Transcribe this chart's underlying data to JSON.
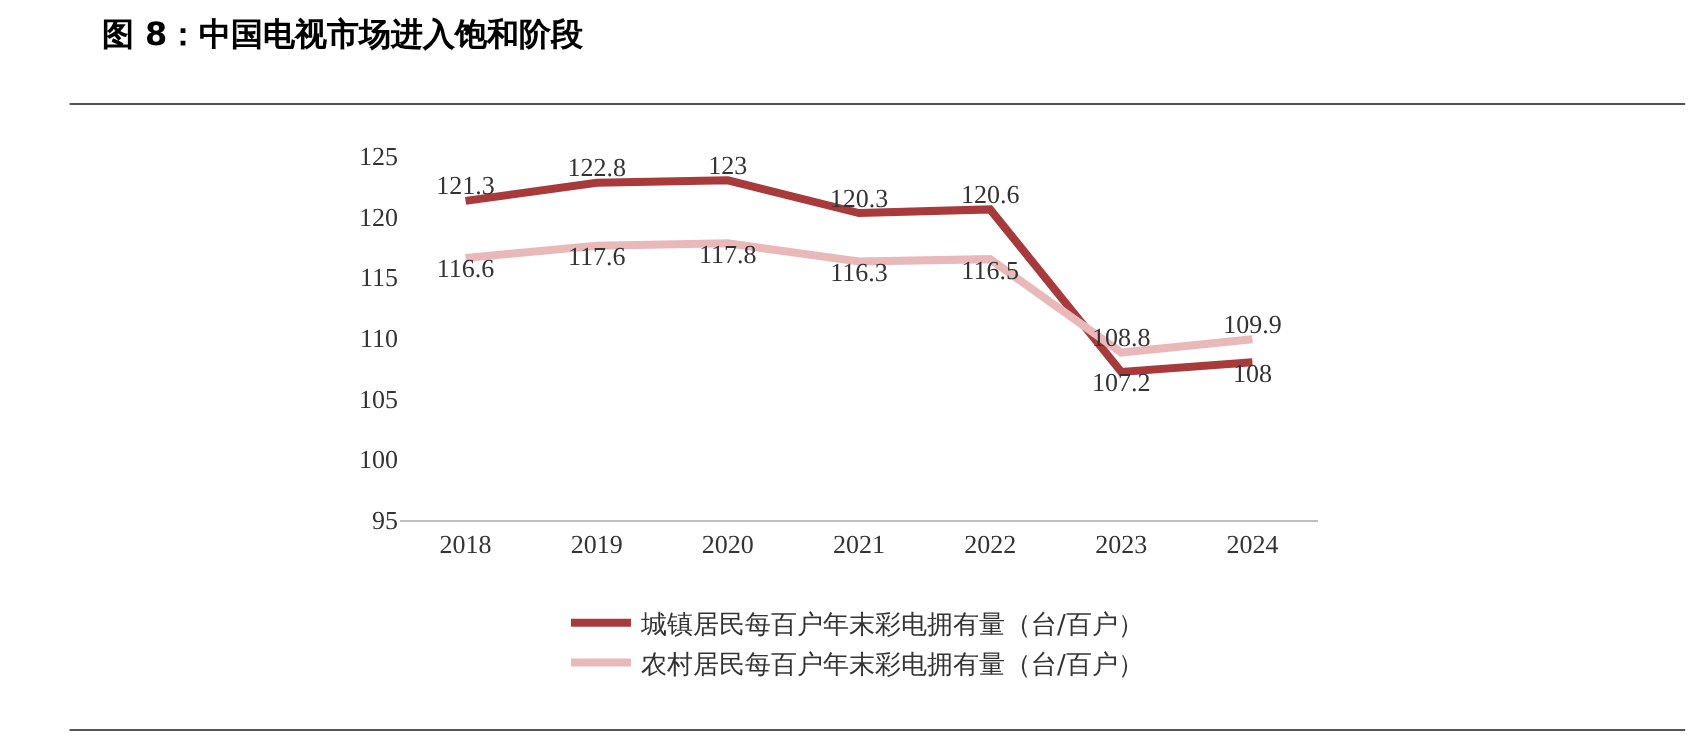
{
  "chart_data": {
    "type": "line",
    "title": "图 8：中国电视市场进入饱和阶段",
    "categories": [
      "2018",
      "2019",
      "2020",
      "2021",
      "2022",
      "2023",
      "2024"
    ],
    "series": [
      {
        "name": "城镇居民每百户年末彩电拥有量（台/百户）",
        "color": "#a83a3c",
        "values": [
          121.3,
          122.8,
          123,
          120.3,
          120.6,
          107.2,
          108
        ]
      },
      {
        "name": "农村居民每百户年末彩电拥有量（台/百户）",
        "color": "#e8b9b8",
        "values": [
          116.6,
          117.6,
          117.8,
          116.3,
          116.5,
          108.8,
          109.9
        ]
      }
    ],
    "ylim": [
      95,
      125
    ],
    "yticks": [
      95,
      100,
      105,
      110,
      115,
      120,
      125
    ],
    "data_labels": true,
    "grid": false,
    "legend": "bottom",
    "marker": "none",
    "line_style": "solid"
  }
}
